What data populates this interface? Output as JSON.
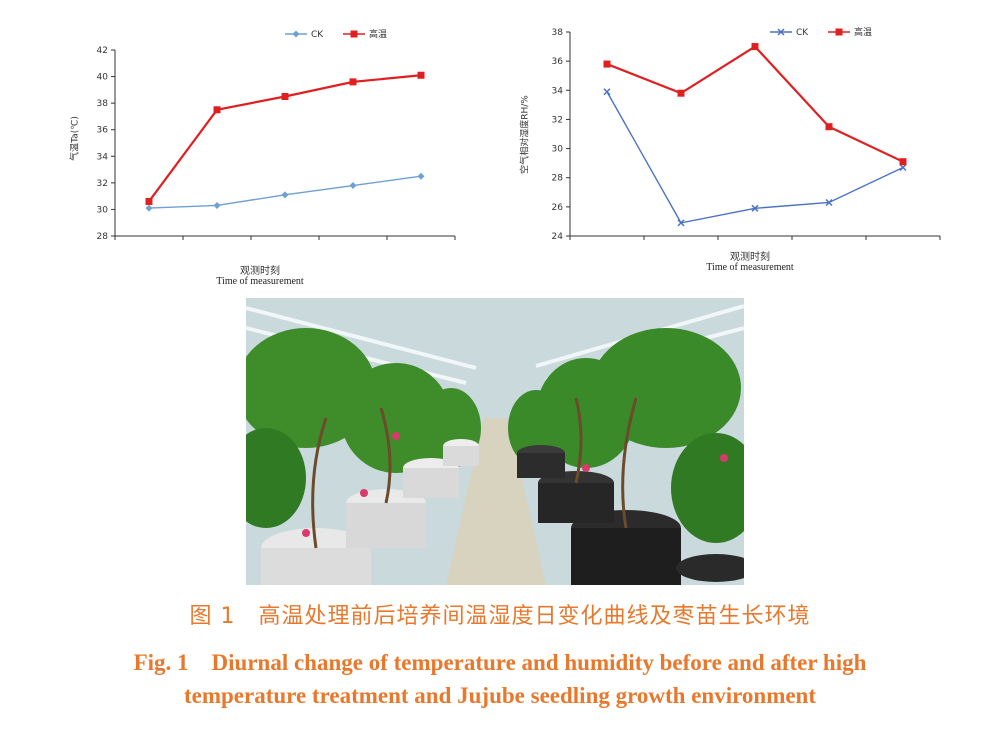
{
  "chart_data": [
    {
      "type": "line",
      "ylabel": "气温Ta(℃)",
      "xlabel_zh": "观测时刻",
      "xlabel_en": "Time of measurement",
      "ylim": [
        28,
        42
      ],
      "yticks": [
        "28",
        "30",
        "32",
        "34",
        "36",
        "38",
        "40",
        "42"
      ],
      "x": [
        1,
        2,
        3,
        4,
        5
      ],
      "legend_position": "top-right",
      "grid": false,
      "series": [
        {
          "name": "CK",
          "values": [
            30.1,
            30.3,
            31.1,
            31.8,
            32.5
          ],
          "color": "#6fa0d4",
          "marker": "diamond"
        },
        {
          "name": "高温",
          "values": [
            30.6,
            37.5,
            38.5,
            39.6,
            40.1
          ],
          "color": "#e02020",
          "marker": "square"
        }
      ]
    },
    {
      "type": "line",
      "ylabel": "空气相对湿度RH/%",
      "xlabel_zh": "观测时刻",
      "xlabel_en": "Time of measurement",
      "ylim": [
        24,
        38
      ],
      "yticks": [
        "24",
        "26",
        "28",
        "30",
        "32",
        "34",
        "36",
        "38"
      ],
      "x": [
        1,
        2,
        3,
        4,
        5
      ],
      "legend_position": "top-right",
      "grid": false,
      "series": [
        {
          "name": "CK",
          "values": [
            33.9,
            24.9,
            25.9,
            26.3,
            28.7
          ],
          "color": "#4a72c4",
          "marker": "x"
        },
        {
          "name": "高温",
          "values": [
            35.8,
            33.8,
            37.0,
            31.5,
            29.1
          ],
          "color": "#e02020",
          "marker": "square"
        }
      ]
    }
  ],
  "caption": {
    "zh": "图 1　高温处理前后培养间温湿度日变化曲线及枣苗生长环境",
    "en_line1": "Fig. 1　Diurnal change of temperature and humidity before and after high",
    "en_line2": "temperature treatment and Jujube seedling growth environment"
  }
}
